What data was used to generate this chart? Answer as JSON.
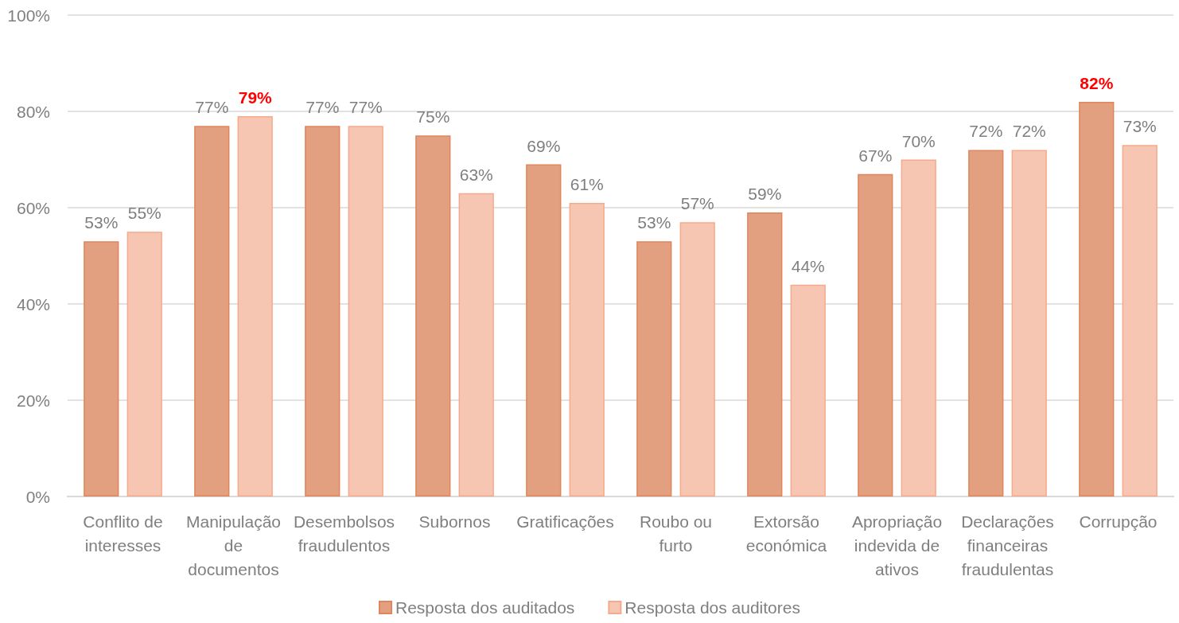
{
  "chart_data": {
    "type": "bar",
    "categories": [
      "Conflito de interesses",
      "Manipulação de documentos",
      "Desembolsos fraudulentos",
      "Subornos",
      "Gratificações",
      "Roubo ou furto",
      "Extorsão económica",
      "Apropriação indevida de ativos",
      "Declarações financeiras fraudulentas",
      "Corrupção"
    ],
    "series": [
      {
        "name": "Resposta dos auditados",
        "color": "#e3a080",
        "values": [
          53,
          77,
          77,
          75,
          69,
          53,
          59,
          67,
          72,
          82
        ],
        "value_labels": [
          "53%",
          "77%",
          "77%",
          "75%",
          "69%",
          "53%",
          "59%",
          "67%",
          "72%",
          "82%"
        ]
      },
      {
        "name": "Resposta dos auditores",
        "color": "#f7c6b2",
        "values": [
          55,
          79,
          77,
          63,
          61,
          57,
          44,
          70,
          72,
          73
        ],
        "value_labels": [
          "55%",
          "79%",
          "77%",
          "63%",
          "61%",
          "57%",
          "44%",
          "70%",
          "72%",
          "73%"
        ]
      }
    ],
    "ylim": [
      0,
      100
    ],
    "yticks": [
      {
        "value": 0,
        "label": "0%"
      },
      {
        "value": 20,
        "label": "20%"
      },
      {
        "value": 40,
        "label": "40%"
      },
      {
        "value": 60,
        "label": "60%"
      },
      {
        "value": 80,
        "label": "80%"
      },
      {
        "value": 100,
        "label": "100%"
      }
    ],
    "grid": "y",
    "legend": "bottom"
  }
}
